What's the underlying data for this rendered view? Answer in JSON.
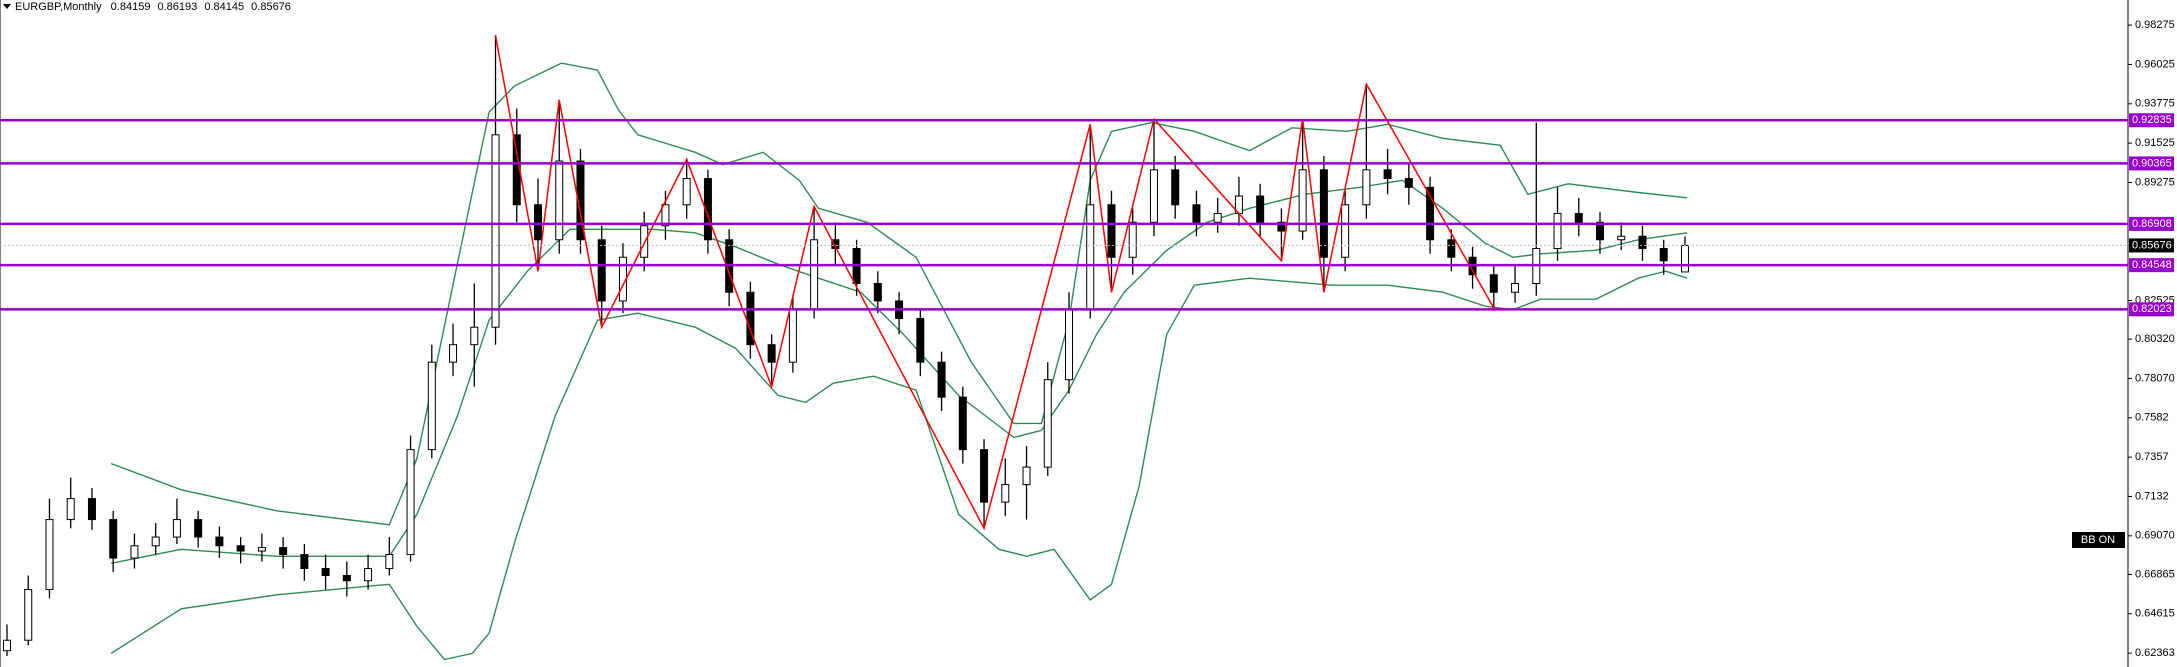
{
  "chart_data": {
    "type": "candlestick",
    "symbol": "EURGBP,Monthly",
    "ylim": [
      0.6157,
      0.9971
    ],
    "yticks": [
      0.98275,
      0.96025,
      0.93775,
      0.91525,
      0.89275,
      0.82525,
      {
        "value": 0.8032,
        "label": "0.80320"
      },
      {
        "value": 0.7807,
        "label": "0.78070"
      },
      0.7582,
      0.7357,
      0.7132,
      {
        "value": 0.6907,
        "label": "0.69070"
      },
      0.66865,
      0.64615,
      0.62363
    ],
    "up_color": "#ffffff",
    "down_color": "#000000",
    "ohlc": [
      [
        0.625,
        0.64,
        0.622,
        0.631
      ],
      [
        0.631,
        0.668,
        0.628,
        0.66
      ],
      [
        0.66,
        0.712,
        0.655,
        0.7
      ],
      [
        0.7,
        0.724,
        0.695,
        0.712
      ],
      [
        0.712,
        0.718,
        0.694,
        0.7
      ],
      [
        0.7,
        0.705,
        0.67,
        0.678
      ],
      [
        0.678,
        0.692,
        0.672,
        0.685
      ],
      [
        0.685,
        0.698,
        0.68,
        0.69
      ],
      [
        0.69,
        0.712,
        0.686,
        0.7
      ],
      [
        0.7,
        0.705,
        0.684,
        0.69
      ],
      [
        0.69,
        0.696,
        0.678,
        0.685
      ],
      [
        0.685,
        0.69,
        0.675,
        0.682
      ],
      [
        0.682,
        0.692,
        0.676,
        0.684
      ],
      [
        0.684,
        0.69,
        0.672,
        0.68
      ],
      [
        0.68,
        0.686,
        0.665,
        0.672
      ],
      [
        0.672,
        0.68,
        0.66,
        0.668
      ],
      [
        0.668,
        0.676,
        0.656,
        0.665
      ],
      [
        0.665,
        0.68,
        0.66,
        0.672
      ],
      [
        0.672,
        0.69,
        0.668,
        0.68
      ],
      [
        0.68,
        0.748,
        0.676,
        0.74
      ],
      [
        0.74,
        0.8,
        0.735,
        0.79
      ],
      [
        0.79,
        0.812,
        0.782,
        0.8
      ],
      [
        0.8,
        0.835,
        0.776,
        0.81
      ],
      [
        0.81,
        0.977,
        0.8,
        0.92
      ],
      [
        0.92,
        0.935,
        0.87,
        0.88
      ],
      [
        0.88,
        0.895,
        0.842,
        0.86
      ],
      [
        0.86,
        0.94,
        0.852,
        0.905
      ],
      [
        0.905,
        0.912,
        0.852,
        0.86
      ],
      [
        0.86,
        0.868,
        0.81,
        0.825
      ],
      [
        0.825,
        0.858,
        0.818,
        0.85
      ],
      [
        0.85,
        0.876,
        0.842,
        0.868
      ],
      [
        0.868,
        0.888,
        0.86,
        0.88
      ],
      [
        0.88,
        0.906,
        0.872,
        0.895
      ],
      [
        0.895,
        0.9,
        0.852,
        0.86
      ],
      [
        0.86,
        0.866,
        0.822,
        0.83
      ],
      [
        0.83,
        0.836,
        0.792,
        0.8
      ],
      [
        0.8,
        0.806,
        0.776,
        0.79
      ],
      [
        0.79,
        0.828,
        0.784,
        0.82
      ],
      [
        0.82,
        0.879,
        0.815,
        0.86
      ],
      [
        0.86,
        0.87,
        0.846,
        0.855
      ],
      [
        0.855,
        0.86,
        0.828,
        0.835
      ],
      [
        0.835,
        0.842,
        0.818,
        0.825
      ],
      [
        0.825,
        0.83,
        0.806,
        0.815
      ],
      [
        0.815,
        0.82,
        0.782,
        0.79
      ],
      [
        0.79,
        0.796,
        0.762,
        0.77
      ],
      [
        0.77,
        0.776,
        0.732,
        0.74
      ],
      [
        0.74,
        0.746,
        0.695,
        0.71
      ],
      [
        0.71,
        0.735,
        0.702,
        0.72
      ],
      [
        0.72,
        0.742,
        0.7,
        0.73
      ],
      [
        0.73,
        0.79,
        0.725,
        0.78
      ],
      [
        0.78,
        0.83,
        0.772,
        0.82
      ],
      [
        0.82,
        0.926,
        0.815,
        0.88
      ],
      [
        0.88,
        0.888,
        0.83,
        0.85
      ],
      [
        0.85,
        0.878,
        0.84,
        0.87
      ],
      [
        0.87,
        0.929,
        0.862,
        0.9
      ],
      [
        0.9,
        0.908,
        0.872,
        0.88
      ],
      [
        0.88,
        0.888,
        0.862,
        0.87
      ],
      [
        0.87,
        0.884,
        0.864,
        0.875
      ],
      [
        0.875,
        0.896,
        0.868,
        0.885
      ],
      [
        0.885,
        0.892,
        0.862,
        0.87
      ],
      [
        0.87,
        0.878,
        0.848,
        0.865
      ],
      [
        0.865,
        0.929,
        0.86,
        0.9
      ],
      [
        0.9,
        0.908,
        0.83,
        0.85
      ],
      [
        0.85,
        0.888,
        0.842,
        0.88
      ],
      [
        0.88,
        0.949,
        0.872,
        0.9
      ],
      [
        0.9,
        0.912,
        0.886,
        0.895
      ],
      [
        0.895,
        0.904,
        0.88,
        0.89
      ],
      [
        0.89,
        0.896,
        0.852,
        0.86
      ],
      [
        0.86,
        0.866,
        0.842,
        0.85
      ],
      [
        0.85,
        0.856,
        0.832,
        0.84
      ],
      [
        0.84,
        0.846,
        0.821,
        0.83
      ],
      [
        0.83,
        0.845,
        0.824,
        0.835
      ],
      [
        0.835,
        0.927,
        0.828,
        0.855
      ],
      [
        0.855,
        0.89,
        0.848,
        0.875
      ],
      [
        0.875,
        0.884,
        0.862,
        0.87
      ],
      [
        0.87,
        0.876,
        0.852,
        0.86
      ],
      [
        0.86,
        0.87,
        0.854,
        0.862
      ],
      [
        0.862,
        0.868,
        0.848,
        0.855
      ],
      [
        0.855,
        0.86,
        0.84,
        0.848
      ],
      [
        0.84159,
        0.86193,
        0.84145,
        0.85676
      ]
    ],
    "bands": [
      {
        "color": "#2e8b57",
        "x": [
          4.9,
          8.2,
          12.7,
          18.0,
          19.3,
          21.2,
          22.7,
          23.9,
          26.1,
          27.8,
          28.8,
          29.7,
          32.4,
          33.7,
          35.6,
          37.3,
          38.2,
          40.5,
          42.8,
          45.4,
          47.4,
          48.7,
          50.0,
          51.0,
          52.0,
          53.9,
          55.9,
          58.5,
          60.5,
          63.1,
          65.0,
          67.6,
          70.3,
          71.6,
          73.5,
          76.8,
          79.1
        ],
        "values": [
          0.732,
          0.717,
          0.705,
          0.697,
          0.735,
          0.846,
          0.933,
          0.948,
          0.961,
          0.957,
          0.934,
          0.92,
          0.91,
          0.903,
          0.91,
          0.894,
          0.878,
          0.87,
          0.85,
          0.79,
          0.755,
          0.755,
          0.814,
          0.894,
          0.922,
          0.927,
          0.922,
          0.911,
          0.924,
          0.922,
          0.926,
          0.918,
          0.914,
          0.886,
          0.892,
          0.887,
          0.884
        ]
      },
      {
        "color": "#2e8b57",
        "x": [
          4.9,
          8.2,
          12.7,
          18.0,
          19.3,
          21.2,
          22.7,
          24.5,
          26.5,
          28.4,
          30.4,
          32.4,
          34.3,
          36.3,
          38.2,
          40.2,
          42.2,
          44.8,
          47.4,
          48.7,
          50.0,
          51.3,
          52.6,
          54.6,
          56.5,
          58.5,
          61.1,
          63.7,
          65.7,
          67.6,
          69.6,
          70.9,
          72.2,
          74.8,
          76.8,
          79.1
        ],
        "values": [
          0.675,
          0.683,
          0.679,
          0.679,
          0.703,
          0.759,
          0.814,
          0.842,
          0.866,
          0.866,
          0.866,
          0.864,
          0.856,
          0.846,
          0.838,
          0.83,
          0.806,
          0.771,
          0.747,
          0.751,
          0.774,
          0.806,
          0.83,
          0.854,
          0.87,
          0.878,
          0.886,
          0.89,
          0.894,
          0.878,
          0.858,
          0.85,
          0.852,
          0.854,
          0.86,
          0.864
        ]
      },
      {
        "color": "#2e8b57",
        "x": [
          4.9,
          8.2,
          12.7,
          18.0,
          19.3,
          20.6,
          21.9,
          22.7,
          23.9,
          25.8,
          27.8,
          29.7,
          32.4,
          34.3,
          36.3,
          37.6,
          38.9,
          40.8,
          42.8,
          44.8,
          46.7,
          48.0,
          49.3,
          51.0,
          52.0,
          53.3,
          54.6,
          55.9,
          58.5,
          62.4,
          65.0,
          67.6,
          69.6,
          70.9,
          72.2,
          74.8,
          76.8,
          78.1,
          79.1
        ],
        "values": [
          0.6235,
          0.649,
          0.657,
          0.663,
          0.639,
          0.62,
          0.6235,
          0.635,
          0.687,
          0.759,
          0.814,
          0.818,
          0.81,
          0.798,
          0.771,
          0.767,
          0.778,
          0.782,
          0.774,
          0.703,
          0.683,
          0.679,
          0.683,
          0.654,
          0.663,
          0.719,
          0.806,
          0.834,
          0.838,
          0.834,
          0.834,
          0.83,
          0.822,
          0.82,
          0.826,
          0.826,
          0.838,
          0.842,
          0.838
        ]
      }
    ],
    "zigzag": {
      "color": "#ff0000",
      "x": [
        23,
        25,
        26,
        28,
        32,
        36,
        38,
        46,
        51,
        52,
        54,
        60,
        61,
        62,
        64,
        70
      ],
      "values": [
        0.977,
        0.842,
        0.94,
        0.81,
        0.906,
        0.776,
        0.879,
        0.695,
        0.926,
        0.83,
        0.929,
        0.848,
        0.929,
        0.83,
        0.949,
        0.821
      ]
    },
    "levels": {
      "color": "#9900cc",
      "values": [
        0.92835,
        0.90365,
        0.86908,
        0.84548,
        0.82023
      ]
    },
    "badge": "BB ON"
  }
}
